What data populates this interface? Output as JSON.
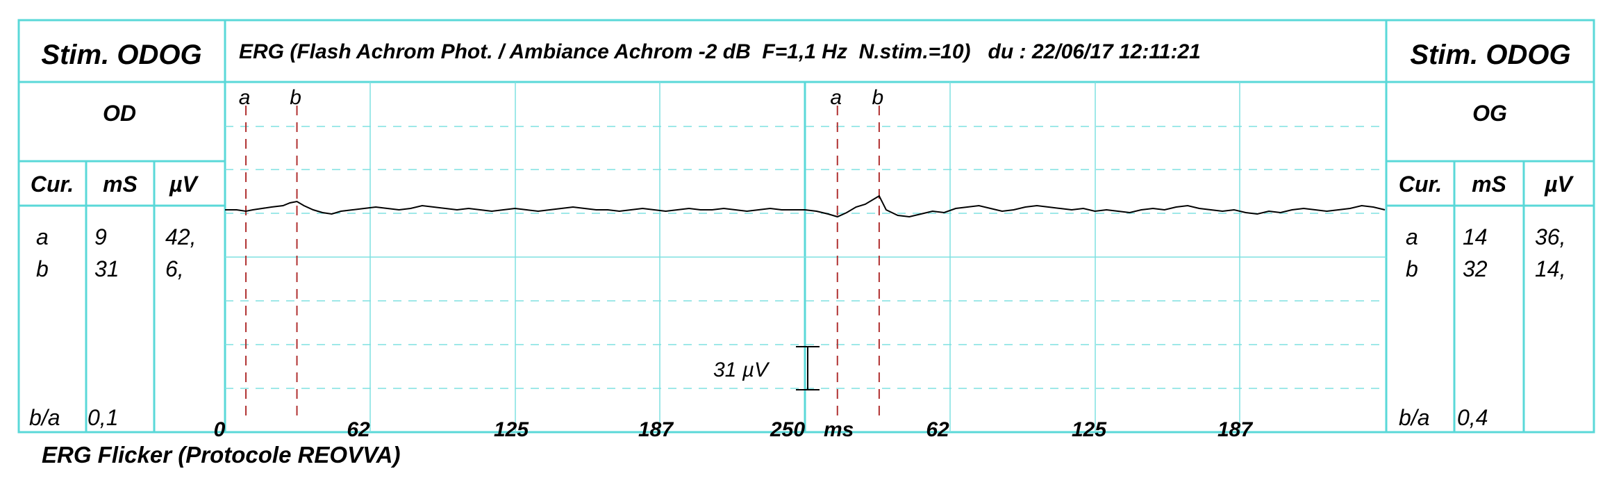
{
  "header": {
    "left_title": "Stim. ODOG",
    "right_title": "Stim. ODOG",
    "center_title": "ERG (Flash Achrom Phot. / Ambiance Achrom -2 dB  F=1,1 Hz  N.stim.=10)   du : 22/06/17 12:11:21"
  },
  "left_panel": {
    "eye": "OD",
    "columns": [
      "Cur.",
      "mS",
      "µV"
    ],
    "rows": [
      {
        "cursor": "a",
        "ms": "9",
        "uv": "42,"
      },
      {
        "cursor": "b",
        "ms": "31",
        "uv": "6,"
      }
    ],
    "ratio_label": "b/a",
    "ratio_value": "0,1"
  },
  "right_panel": {
    "eye": "OG",
    "columns": [
      "Cur.",
      "mS",
      "µV"
    ],
    "rows": [
      {
        "cursor": "a",
        "ms": "14",
        "uv": "36,"
      },
      {
        "cursor": "b",
        "ms": "32",
        "uv": "14,"
      }
    ],
    "ratio_label": "b/a",
    "ratio_value": "0,4"
  },
  "footer": "ERG Flicker (Protocole REOVVA)",
  "colors": {
    "grid": "#5ad8d8",
    "dashed_grid": "#5ad8d8",
    "cursor": "#b03030",
    "trace": "#000000"
  },
  "chart_data": {
    "type": "line",
    "x_unit": "ms",
    "x_ticks": [
      "0",
      "62",
      "125",
      "187",
      "250",
      "62",
      "125",
      "187"
    ],
    "panels": [
      {
        "eye": "OD",
        "xlim": [
          0,
          250
        ],
        "cursor_labels": [
          "a",
          "b"
        ],
        "cursors_ms": [
          9,
          31
        ]
      },
      {
        "eye": "OG",
        "xlim": [
          0,
          250
        ],
        "cursor_labels": [
          "a",
          "b"
        ],
        "cursors_ms": [
          14,
          32
        ]
      }
    ],
    "scale_bar": {
      "label": "31 µV",
      "value_uv": 31
    },
    "series": [
      {
        "eye": "OD",
        "x": [
          0,
          5,
          9,
          12,
          16,
          20,
          25,
          28,
          31,
          34,
          38,
          42,
          46,
          50,
          55,
          60,
          65,
          70,
          75,
          80,
          85,
          90,
          95,
          100,
          105,
          110,
          115,
          120,
          125,
          130,
          135,
          140,
          145,
          150,
          155,
          160,
          165,
          170,
          175,
          180,
          185,
          190,
          195,
          200,
          205,
          210,
          215,
          220,
          225,
          230,
          235,
          240,
          245,
          250
        ],
        "y": [
          0,
          0,
          -1,
          0,
          1,
          2,
          3,
          5,
          6,
          3,
          0,
          -2,
          -3,
          -1,
          0,
          1,
          2,
          1,
          0,
          1,
          3,
          2,
          1,
          0,
          1,
          0,
          -1,
          0,
          1,
          0,
          -1,
          0,
          1,
          2,
          1,
          0,
          0,
          -1,
          0,
          1,
          0,
          -1,
          0,
          1,
          0,
          0,
          1,
          0,
          -1,
          0,
          1,
          0,
          0,
          0
        ]
      },
      {
        "eye": "OG",
        "x": [
          0,
          5,
          10,
          14,
          18,
          22,
          26,
          30,
          32,
          35,
          40,
          45,
          50,
          55,
          60,
          65,
          70,
          75,
          80,
          85,
          90,
          95,
          100,
          105,
          110,
          115,
          120,
          125,
          130,
          135,
          140,
          145,
          150,
          155,
          160,
          165,
          170,
          175,
          180,
          185,
          190,
          195,
          200,
          205,
          210,
          215,
          220,
          225,
          230,
          235,
          240,
          245,
          250
        ],
        "y": [
          0,
          -1,
          -3,
          -5,
          -2,
          2,
          4,
          8,
          10,
          0,
          -4,
          -5,
          -3,
          -1,
          -2,
          1,
          2,
          3,
          1,
          -1,
          0,
          2,
          3,
          2,
          1,
          0,
          1,
          -1,
          0,
          -1,
          -2,
          0,
          1,
          0,
          2,
          3,
          1,
          0,
          -1,
          0,
          -2,
          -3,
          -1,
          -2,
          0,
          1,
          0,
          -1,
          0,
          1,
          3,
          2,
          0
        ]
      }
    ]
  }
}
